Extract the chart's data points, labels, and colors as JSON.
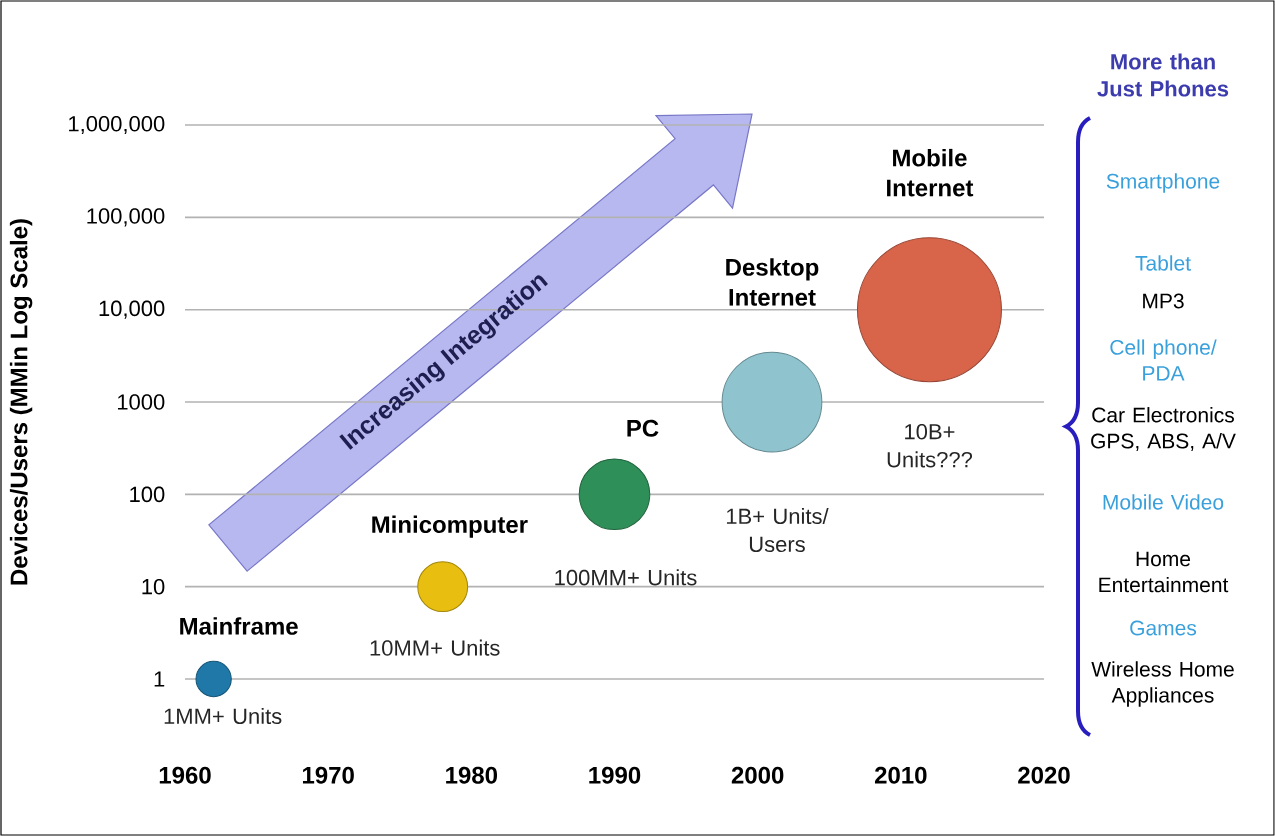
{
  "chart_data": {
    "type": "bubble",
    "ylabel": "Devices/Users (MMin Log Scale)",
    "x": [
      1962,
      1978,
      1990,
      2001,
      2012
    ],
    "values": [
      1,
      10,
      100,
      1000,
      10000
    ],
    "sizes": [
      0.06,
      0.12,
      0.24,
      0.48,
      1
    ],
    "colors": [
      "#1f78a8",
      "#e8bf10",
      "#2f8f58",
      "#8fc4cf",
      "#d8644a"
    ],
    "log": "y",
    "grid": "y",
    "xlim": [
      1960,
      2020
    ],
    "xticks": [
      1960,
      1970,
      1980,
      1990,
      2000,
      2010,
      2020
    ],
    "ylim": [
      1,
      1000000
    ],
    "yticks": [
      {
        "value": 1,
        "label": "1"
      },
      {
        "value": 10,
        "label": "10"
      },
      {
        "value": 100,
        "label": "100"
      },
      {
        "value": 1000,
        "label": "1000"
      },
      {
        "value": 10000,
        "label": "10,000"
      },
      {
        "value": 100000,
        "label": "100,000"
      },
      {
        "value": 1000000,
        "label": "1,000,000"
      }
    ],
    "annotations": [
      "Mainframe",
      "1MM+ Units",
      "Minicomputer",
      "10MM+ Units",
      "PC",
      "100MM+ Units",
      "Desktop Internet",
      "1B+ Units/ Users",
      "Mobile Internet",
      "10B+ Units???",
      "Increasing Integration",
      "More than Just Phones",
      "Smartphone",
      "Tablet",
      "MP3",
      "Cell phone/ PDA",
      "Car Electronics GPS, ABS, A/V",
      "Mobile Video",
      "Home Entertainment",
      "Games",
      "Wireless Home Appliances"
    ]
  }
}
